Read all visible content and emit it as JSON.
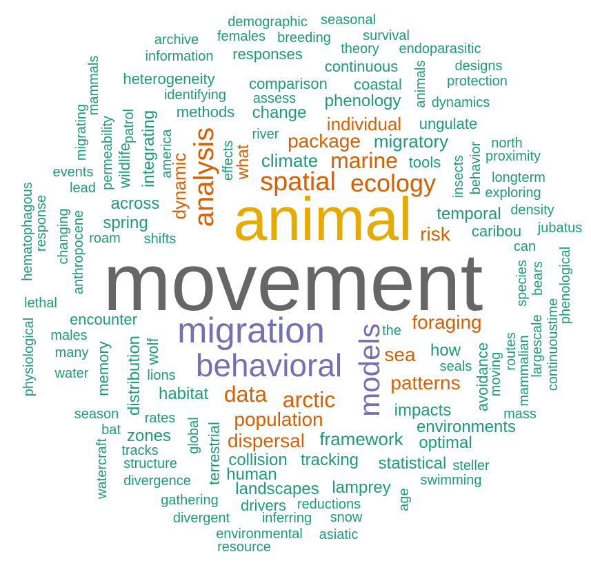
{
  "palette": {
    "gray": "#666666",
    "gold": "#E6AB02",
    "purple": "#7570B3",
    "orange": "#D95F02",
    "green": "#1B9E77"
  },
  "words": [
    {
      "text": "movement",
      "color": "gray"
    },
    {
      "text": "animal",
      "color": "gold"
    },
    {
      "text": "migration",
      "color": "purple"
    },
    {
      "text": "behavioral",
      "color": "purple"
    },
    {
      "text": "models",
      "color": "purple"
    },
    {
      "text": "analysis",
      "color": "orange"
    },
    {
      "text": "spatial",
      "color": "orange"
    },
    {
      "text": "ecology",
      "color": "orange"
    },
    {
      "text": "marine",
      "color": "orange"
    },
    {
      "text": "data",
      "color": "orange"
    },
    {
      "text": "arctic",
      "color": "orange"
    },
    {
      "text": "population",
      "color": "orange"
    },
    {
      "text": "dispersal",
      "color": "orange"
    },
    {
      "text": "package",
      "color": "orange"
    },
    {
      "text": "individual",
      "color": "orange"
    },
    {
      "text": "foraging",
      "color": "orange"
    },
    {
      "text": "patterns",
      "color": "orange"
    },
    {
      "text": "sea",
      "color": "orange"
    },
    {
      "text": "risk",
      "color": "orange"
    },
    {
      "text": "dynamic",
      "color": "orange"
    },
    {
      "text": "what",
      "color": "orange"
    },
    {
      "text": "demographic",
      "color": "green"
    },
    {
      "text": "seasonal",
      "color": "green"
    },
    {
      "text": "archive",
      "color": "green"
    },
    {
      "text": "females",
      "color": "green"
    },
    {
      "text": "breeding",
      "color": "green"
    },
    {
      "text": "survival",
      "color": "green"
    },
    {
      "text": "information",
      "color": "green"
    },
    {
      "text": "theory",
      "color": "green"
    },
    {
      "text": "endoparasitic",
      "color": "green"
    },
    {
      "text": "responses",
      "color": "green"
    },
    {
      "text": "continuous",
      "color": "green"
    },
    {
      "text": "designs",
      "color": "green"
    },
    {
      "text": "heterogeneity",
      "color": "green"
    },
    {
      "text": "protection",
      "color": "green"
    },
    {
      "text": "comparison",
      "color": "green"
    },
    {
      "text": "coastal",
      "color": "green"
    },
    {
      "text": "identifying",
      "color": "green"
    },
    {
      "text": "assess",
      "color": "green"
    },
    {
      "text": "phenology",
      "color": "green"
    },
    {
      "text": "dynamics",
      "color": "green"
    },
    {
      "text": "methods",
      "color": "green"
    },
    {
      "text": "change",
      "color": "green"
    },
    {
      "text": "ungulate",
      "color": "green"
    },
    {
      "text": "river",
      "color": "green"
    },
    {
      "text": "migratory",
      "color": "green"
    },
    {
      "text": "north",
      "color": "green"
    },
    {
      "text": "proximity",
      "color": "green"
    },
    {
      "text": "climate",
      "color": "green"
    },
    {
      "text": "tools",
      "color": "green"
    },
    {
      "text": "events",
      "color": "green"
    },
    {
      "text": "longterm",
      "color": "green"
    },
    {
      "text": "lead",
      "color": "green"
    },
    {
      "text": "exploring",
      "color": "green"
    },
    {
      "text": "across",
      "color": "green"
    },
    {
      "text": "density",
      "color": "green"
    },
    {
      "text": "temporal",
      "color": "green"
    },
    {
      "text": "spring",
      "color": "green"
    },
    {
      "text": "jubatus",
      "color": "green"
    },
    {
      "text": "caribou",
      "color": "green"
    },
    {
      "text": "roam",
      "color": "green"
    },
    {
      "text": "shifts",
      "color": "green"
    },
    {
      "text": "can",
      "color": "green"
    },
    {
      "text": "lethal",
      "color": "green"
    },
    {
      "text": "encounter",
      "color": "green"
    },
    {
      "text": "the",
      "color": "green"
    },
    {
      "text": "males",
      "color": "green"
    },
    {
      "text": "how",
      "color": "green"
    },
    {
      "text": "many",
      "color": "green"
    },
    {
      "text": "seals",
      "color": "green"
    },
    {
      "text": "water",
      "color": "green"
    },
    {
      "text": "lions",
      "color": "green"
    },
    {
      "text": "habitat",
      "color": "green"
    },
    {
      "text": "season",
      "color": "green"
    },
    {
      "text": "rates",
      "color": "green"
    },
    {
      "text": "impacts",
      "color": "green"
    },
    {
      "text": "mass",
      "color": "green"
    },
    {
      "text": "bat",
      "color": "green"
    },
    {
      "text": "zones",
      "color": "green"
    },
    {
      "text": "environments",
      "color": "green"
    },
    {
      "text": "framework",
      "color": "green"
    },
    {
      "text": "optimal",
      "color": "green"
    },
    {
      "text": "tracks",
      "color": "green"
    },
    {
      "text": "structure",
      "color": "green"
    },
    {
      "text": "collision",
      "color": "green"
    },
    {
      "text": "tracking",
      "color": "green"
    },
    {
      "text": "statistical",
      "color": "green"
    },
    {
      "text": "steller",
      "color": "green"
    },
    {
      "text": "human",
      "color": "green"
    },
    {
      "text": "swimming",
      "color": "green"
    },
    {
      "text": "divergence",
      "color": "green"
    },
    {
      "text": "landscapes",
      "color": "green"
    },
    {
      "text": "lamprey",
      "color": "green"
    },
    {
      "text": "gathering",
      "color": "green"
    },
    {
      "text": "drivers",
      "color": "green"
    },
    {
      "text": "reductions",
      "color": "green"
    },
    {
      "text": "divergent",
      "color": "green"
    },
    {
      "text": "inferring",
      "color": "green"
    },
    {
      "text": "snow",
      "color": "green"
    },
    {
      "text": "environmental",
      "color": "green"
    },
    {
      "text": "asiatic",
      "color": "green"
    },
    {
      "text": "resource",
      "color": "green"
    },
    {
      "text": "mammals",
      "color": "green"
    },
    {
      "text": "migrating",
      "color": "green"
    },
    {
      "text": "permeability",
      "color": "green"
    },
    {
      "text": "patrol",
      "color": "green"
    },
    {
      "text": "wildlife",
      "color": "green"
    },
    {
      "text": "integrating",
      "color": "green"
    },
    {
      "text": "america",
      "color": "green"
    },
    {
      "text": "effects",
      "color": "green"
    },
    {
      "text": "animals",
      "color": "green"
    },
    {
      "text": "insects",
      "color": "green"
    },
    {
      "text": "behavior",
      "color": "green"
    },
    {
      "text": "hematophagous",
      "color": "green"
    },
    {
      "text": "response",
      "color": "green"
    },
    {
      "text": "changing",
      "color": "green"
    },
    {
      "text": "anthropocene",
      "color": "green"
    },
    {
      "text": "physiological",
      "color": "green"
    },
    {
      "text": "memory",
      "color": "green"
    },
    {
      "text": "distribution",
      "color": "green"
    },
    {
      "text": "wolf",
      "color": "green"
    },
    {
      "text": "global",
      "color": "green"
    },
    {
      "text": "terrestrial",
      "color": "green"
    },
    {
      "text": "watercraft",
      "color": "green"
    },
    {
      "text": "avoidance",
      "color": "green"
    },
    {
      "text": "moving",
      "color": "green"
    },
    {
      "text": "routes",
      "color": "green"
    },
    {
      "text": "mammalian",
      "color": "green"
    },
    {
      "text": "species",
      "color": "green"
    },
    {
      "text": "largescale",
      "color": "green"
    },
    {
      "text": "bears",
      "color": "green"
    },
    {
      "text": "continuoustime",
      "color": "green"
    },
    {
      "text": "phenological",
      "color": "green"
    },
    {
      "text": "age",
      "color": "green"
    }
  ]
}
